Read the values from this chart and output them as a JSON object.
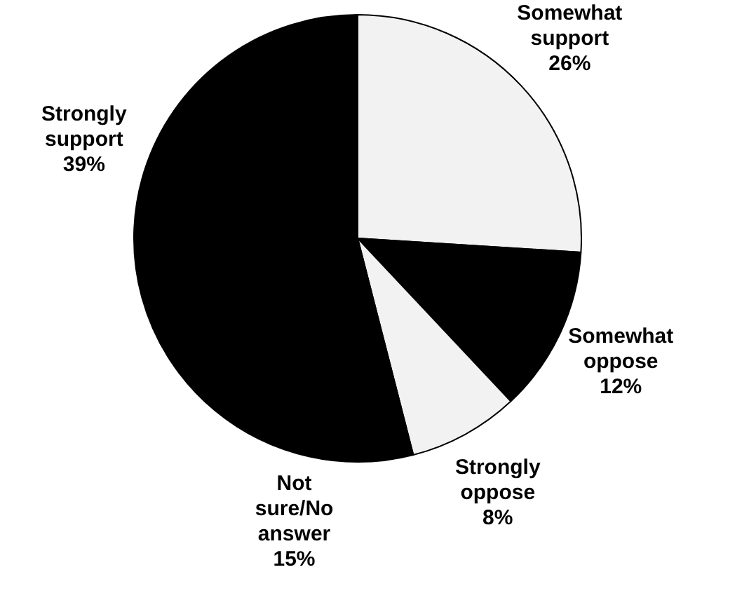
{
  "chart_data": {
    "type": "pie",
    "categories": [
      "Somewhat support",
      "Somewhat oppose",
      "Strongly oppose",
      "Not sure/No answer",
      "Strongly support"
    ],
    "values": [
      26,
      12,
      8,
      15,
      39
    ],
    "colors": [
      "#f2f2f2",
      "#000000",
      "#f2f2f2",
      "#000000",
      "#000000"
    ],
    "value_labels": [
      "26%",
      "12%",
      "8%",
      "15%",
      "39%"
    ],
    "legend": false
  }
}
